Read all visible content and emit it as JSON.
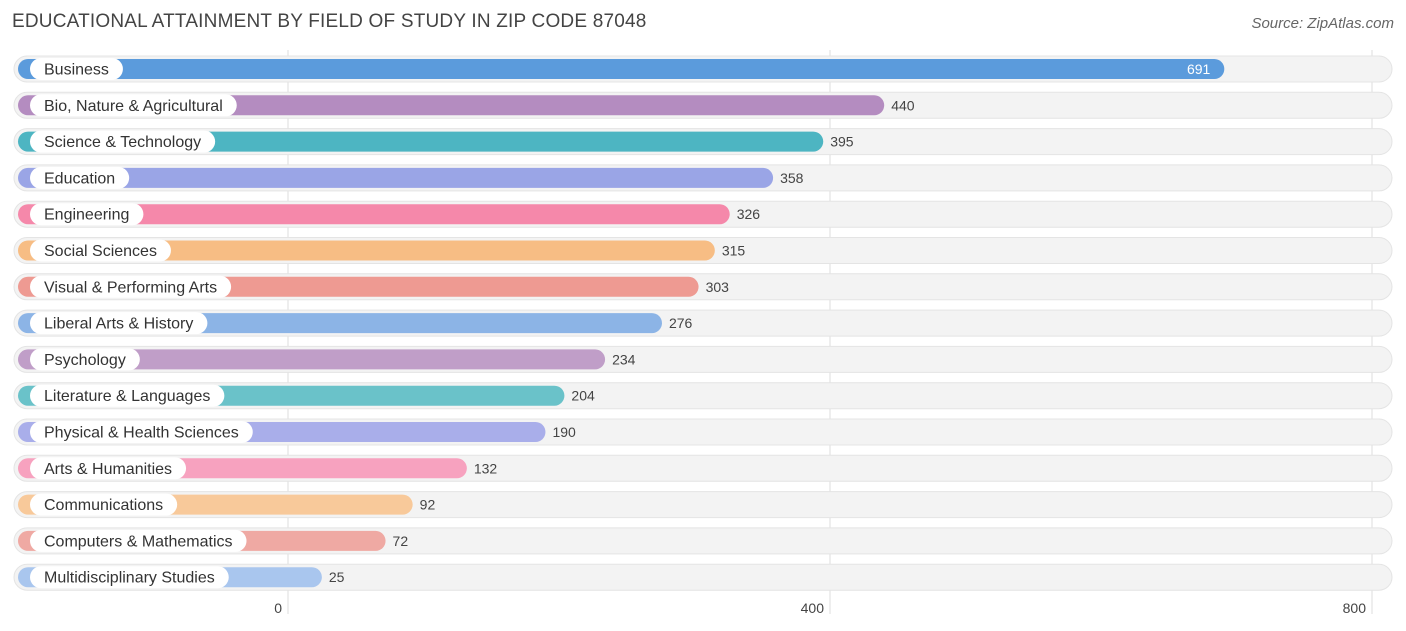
{
  "header": {
    "title": "EDUCATIONAL ATTAINMENT BY FIELD OF STUDY IN ZIP CODE 87048",
    "source": "Source: ZipAtlas.com"
  },
  "chart_data": {
    "type": "bar",
    "orientation": "horizontal",
    "title": "EDUCATIONAL ATTAINMENT BY FIELD OF STUDY IN ZIP CODE 87048",
    "xlabel": "",
    "ylabel": "",
    "xlim": [
      0,
      800
    ],
    "ticks": [
      0,
      400,
      800
    ],
    "tick_labels": [
      "0",
      "400",
      "800"
    ],
    "grid": true,
    "categories": [
      "Business",
      "Bio, Nature & Agricultural",
      "Science & Technology",
      "Education",
      "Engineering",
      "Social Sciences",
      "Visual & Performing Arts",
      "Liberal Arts & History",
      "Psychology",
      "Literature & Languages",
      "Physical & Health Sciences",
      "Arts & Humanities",
      "Communications",
      "Computers & Mathematics",
      "Multidisciplinary Studies"
    ],
    "values": [
      691,
      440,
      395,
      358,
      326,
      315,
      303,
      276,
      234,
      204,
      190,
      132,
      92,
      72,
      25
    ],
    "colors": [
      "#5b9bdc",
      "#b48cc0",
      "#4db5c2",
      "#9aa5e6",
      "#f588aa",
      "#f7bd84",
      "#ee9a92",
      "#8cb4e6",
      "#c09ec8",
      "#6ac2c9",
      "#a9aeea",
      "#f7a2bf",
      "#f8c99a",
      "#efa9a3",
      "#a9c6ee"
    ]
  }
}
